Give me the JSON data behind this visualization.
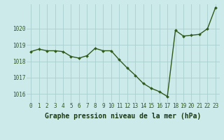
{
  "x": [
    0,
    1,
    2,
    3,
    4,
    5,
    6,
    7,
    8,
    9,
    10,
    11,
    12,
    13,
    14,
    15,
    16,
    17,
    18,
    19,
    20,
    21,
    22,
    23
  ],
  "y": [
    1018.6,
    1018.75,
    1018.65,
    1018.65,
    1018.6,
    1018.3,
    1018.2,
    1018.35,
    1018.8,
    1018.65,
    1018.65,
    1018.1,
    1017.6,
    1017.15,
    1016.65,
    1016.35,
    1016.15,
    1015.85,
    1019.9,
    1019.55,
    1019.6,
    1019.65,
    1020.0,
    1021.3
  ],
  "line_color": "#2d5a1b",
  "marker": "D",
  "marker_size": 2.0,
  "line_width": 1.0,
  "background_color": "#cdeaea",
  "grid_color": "#aacece",
  "xlabel": "Graphe pression niveau de la mer (hPa)",
  "xlabel_fontsize": 7.0,
  "xlabel_color": "#1a3a10",
  "tick_color": "#2d5a1b",
  "tick_fontsize": 5.5,
  "ylim": [
    1015.5,
    1021.5
  ],
  "yticks": [
    1016,
    1017,
    1018,
    1019,
    1020
  ],
  "xlim": [
    -0.5,
    23.5
  ],
  "xticks": [
    0,
    1,
    2,
    3,
    4,
    5,
    6,
    7,
    8,
    9,
    10,
    11,
    12,
    13,
    14,
    15,
    16,
    17,
    18,
    19,
    20,
    21,
    22,
    23
  ]
}
